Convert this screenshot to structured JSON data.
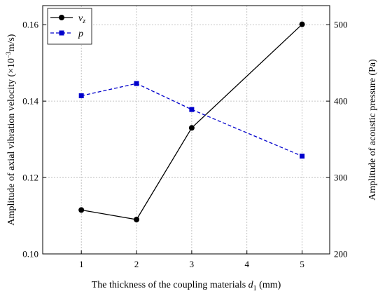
{
  "chart_data": {
    "type": "line",
    "xlabel_main": "The thickness of the coupling materials ",
    "xlabel_var": "d",
    "xlabel_sub": "1",
    "xlabel_unit": " (mm)",
    "ylabel_left_pre": "Amplitude of axial vibration velocity (×10",
    "ylabel_left_exp": "−3",
    "ylabel_left_post": "m/s)",
    "ylabel_right": "Amplitude of acoustic pressure (Pa)",
    "xlim": [
      0.3,
      5.5
    ],
    "x_ticks": [
      "1",
      "2",
      "3",
      "4",
      "5"
    ],
    "y_left_lim": [
      0.1,
      0.165
    ],
    "y_left_ticks": [
      "0.10",
      "0.12",
      "0.14",
      "0.16"
    ],
    "y_right_lim": [
      200,
      525
    ],
    "y_right_ticks": [
      "200",
      "300",
      "400",
      "500"
    ],
    "grid": true,
    "legend_position": "top-left",
    "series": [
      {
        "name_var": "v",
        "name_sub": "z",
        "axis": "left",
        "color": "#000000",
        "line_style": "solid",
        "marker": "circle",
        "x": [
          1,
          2,
          3,
          5
        ],
        "values": [
          0.1115,
          0.109,
          0.133,
          0.1601
        ]
      },
      {
        "name_var": "p",
        "name_sub": "",
        "axis": "right",
        "color": "#0000cc",
        "line_style": "dashed",
        "marker": "square",
        "x": [
          1,
          2,
          3,
          5
        ],
        "values": [
          407,
          423,
          389,
          328
        ]
      }
    ]
  }
}
